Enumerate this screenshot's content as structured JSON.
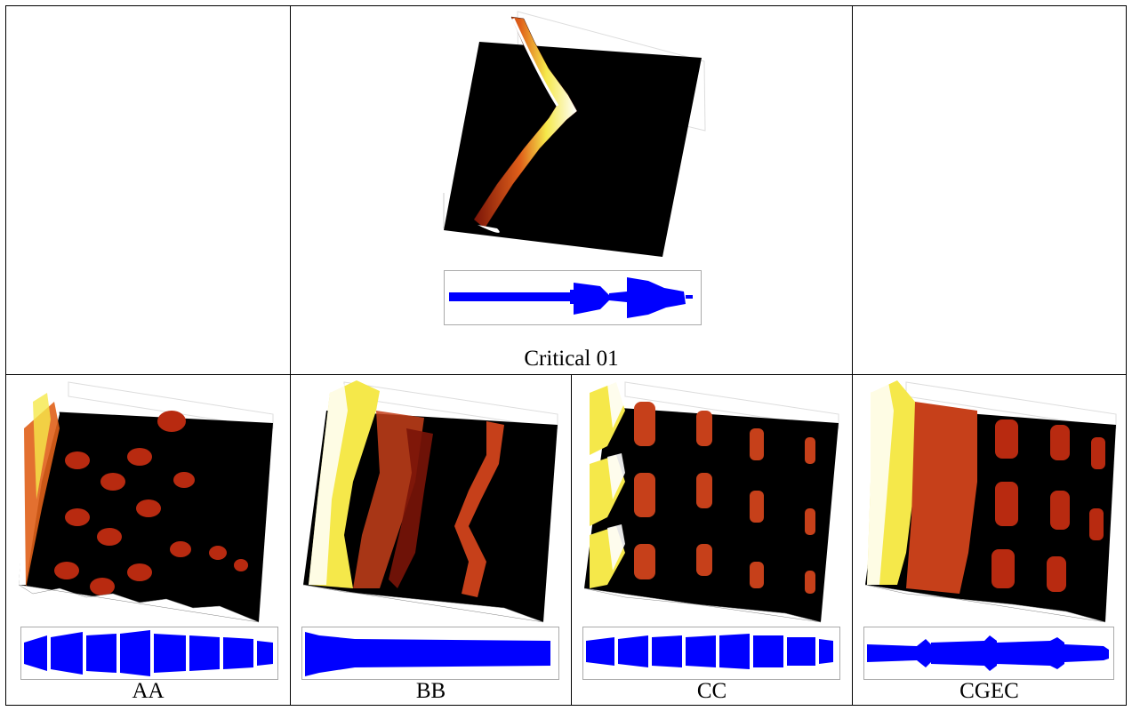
{
  "top_panel": {
    "caption": "Critical 01"
  },
  "bottom_panels": [
    {
      "id": "aa",
      "caption": "AA"
    },
    {
      "id": "bb",
      "caption": "BB"
    },
    {
      "id": "cc",
      "caption": "CC"
    },
    {
      "id": "cgec",
      "caption": "CGEC"
    }
  ],
  "colors": {
    "surface_background": "#000000",
    "surface_ridge_low": "#8b1a0a",
    "surface_ridge_mid": "#e0601a",
    "surface_ridge_high": "#f5e84a",
    "surface_peak": "#ffffff",
    "waveform": "#0000ff"
  }
}
